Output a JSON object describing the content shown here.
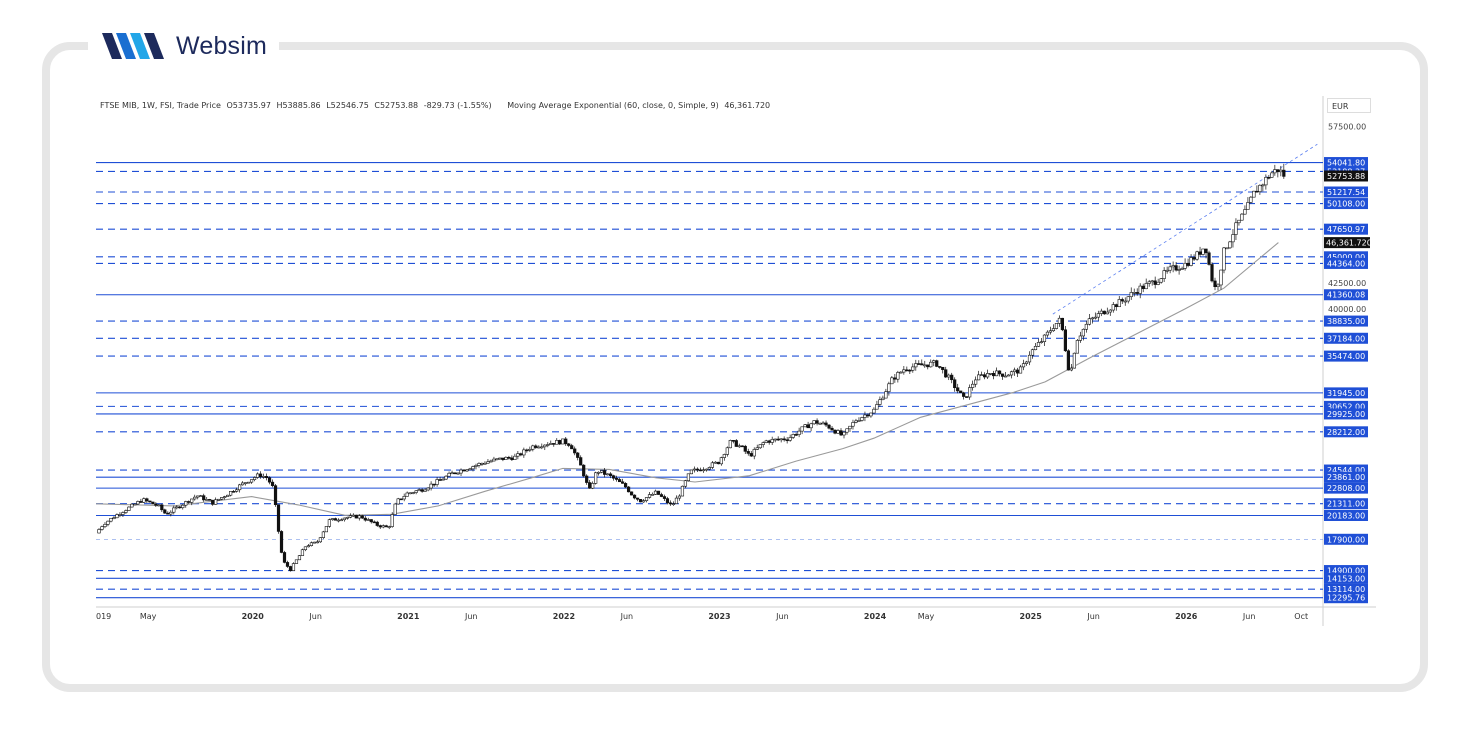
{
  "brand": {
    "name": "Websim",
    "logo_colors": [
      "#1a6fd1",
      "#22a6e8",
      "#1d2a5c"
    ]
  },
  "legend": {
    "symbol": "FTSE MIB, 1W, FSI, Trade Price",
    "open": "O53735.97",
    "high": "H53885.86",
    "low": "L52546.75",
    "close": "C52753.88",
    "change": "-829.73 (-1.55%)",
    "indicator": "Moving Average Exponential (60, close, 0, Simple, 9)",
    "indicator_value": "46,361.720"
  },
  "currency": "EUR",
  "chart_data": {
    "type": "candlestick",
    "y_range": [
      11500,
      58700
    ],
    "x_range": [
      2019.0,
      2026.88
    ],
    "x_ticks": [
      {
        "label": "019",
        "t": 2019.0
      },
      {
        "label": "May",
        "t": 2019.33
      },
      {
        "label": "2020",
        "t": 2020.0
      },
      {
        "label": "Jun",
        "t": 2020.42
      },
      {
        "label": "2021",
        "t": 2021.0
      },
      {
        "label": "Jun",
        "t": 2021.42
      },
      {
        "label": "2022",
        "t": 2022.0
      },
      {
        "label": "Jun",
        "t": 2022.42
      },
      {
        "label": "2023",
        "t": 2023.0
      },
      {
        "label": "Jun",
        "t": 2023.42
      },
      {
        "label": "2024",
        "t": 2024.0
      },
      {
        "label": "May",
        "t": 2024.33
      },
      {
        "label": "2025",
        "t": 2025.0
      },
      {
        "label": "Jun",
        "t": 2025.42
      },
      {
        "label": "2026",
        "t": 2026.0
      },
      {
        "label": "Jun",
        "t": 2026.42
      },
      {
        "label": "Oct",
        "t": 2026.75
      }
    ],
    "y_ticks": [
      {
        "label": "57500.00",
        "v": 57500
      },
      {
        "label": "42500.00",
        "v": 42500
      },
      {
        "label": "40000.00",
        "v": 40000
      }
    ],
    "level_lines": [
      {
        "label": "54041.80",
        "v": 54041.8,
        "style": "solid"
      },
      {
        "label": "53188.37",
        "v": 53188.37,
        "style": "dashed"
      },
      {
        "label": "51217.54",
        "v": 51217.54,
        "style": "dashed"
      },
      {
        "label": "50108.00",
        "v": 50108.0,
        "style": "dashed"
      },
      {
        "label": "47650.97",
        "v": 47650.97,
        "style": "dashed"
      },
      {
        "label": "45000.00",
        "v": 45000.0,
        "style": "dashed"
      },
      {
        "label": "44364.00",
        "v": 44364.0,
        "style": "dashed"
      },
      {
        "label": "41360.08",
        "v": 41360.08,
        "style": "solid"
      },
      {
        "label": "38835.00",
        "v": 38835.0,
        "style": "dashed"
      },
      {
        "label": "37184.00",
        "v": 37184.0,
        "style": "dashed"
      },
      {
        "label": "35474.00",
        "v": 35474.0,
        "style": "dashed"
      },
      {
        "label": "31945.00",
        "v": 31945.0,
        "style": "solid"
      },
      {
        "label": "30652.00",
        "v": 30652.0,
        "style": "dashed"
      },
      {
        "label": "29925.00",
        "v": 29925.0,
        "style": "solid"
      },
      {
        "label": "28212.00",
        "v": 28212.0,
        "style": "dashed"
      },
      {
        "label": "24544.00",
        "v": 24544.0,
        "style": "dashed"
      },
      {
        "label": "23861.00",
        "v": 23861.0,
        "style": "solid"
      },
      {
        "label": "22808.00",
        "v": 22808.0,
        "style": "solid"
      },
      {
        "label": "21311.00",
        "v": 21311.0,
        "style": "dashed"
      },
      {
        "label": "20183.00",
        "v": 20183.0,
        "style": "solid"
      },
      {
        "label": "17900.00",
        "v": 17900.0,
        "style": "thin-dashed"
      },
      {
        "label": "14900.00",
        "v": 14900.0,
        "style": "dashed"
      },
      {
        "label": "14153.00",
        "v": 14153.0,
        "style": "solid"
      },
      {
        "label": "13114.00",
        "v": 13114.0,
        "style": "dashed"
      },
      {
        "label": "12295.76",
        "v": 12295.76,
        "style": "solid"
      }
    ],
    "last_price": {
      "label": "52753.88",
      "v": 52753.88
    },
    "ema_label": {
      "label": "46,361.720",
      "v": 46361.72
    },
    "price_path": [
      [
        2019.0,
        18500
      ],
      [
        2019.05,
        19400
      ],
      [
        2019.15,
        20400
      ],
      [
        2019.3,
        21700
      ],
      [
        2019.4,
        21100
      ],
      [
        2019.45,
        20300
      ],
      [
        2019.55,
        21200
      ],
      [
        2019.65,
        22100
      ],
      [
        2019.75,
        21400
      ],
      [
        2019.85,
        22300
      ],
      [
        2019.95,
        23300
      ],
      [
        2020.05,
        24100
      ],
      [
        2020.1,
        23800
      ],
      [
        2020.14,
        22800
      ],
      [
        2020.17,
        19000
      ],
      [
        2020.2,
        15800
      ],
      [
        2020.25,
        15000
      ],
      [
        2020.35,
        17300
      ],
      [
        2020.42,
        17600
      ],
      [
        2020.5,
        19700
      ],
      [
        2020.6,
        20000
      ],
      [
        2020.7,
        20100
      ],
      [
        2020.8,
        19300
      ],
      [
        2020.88,
        19000
      ],
      [
        2020.93,
        21500
      ],
      [
        2021.0,
        22300
      ],
      [
        2021.1,
        22700
      ],
      [
        2021.2,
        23500
      ],
      [
        2021.3,
        24300
      ],
      [
        2021.42,
        24900
      ],
      [
        2021.5,
        25300
      ],
      [
        2021.6,
        25600
      ],
      [
        2021.7,
        25800
      ],
      [
        2021.8,
        26800
      ],
      [
        2021.9,
        27100
      ],
      [
        2022.0,
        27300
      ],
      [
        2022.05,
        27000
      ],
      [
        2022.12,
        24800
      ],
      [
        2022.17,
        22500
      ],
      [
        2022.22,
        24500
      ],
      [
        2022.3,
        24000
      ],
      [
        2022.4,
        23000
      ],
      [
        2022.45,
        22100
      ],
      [
        2022.5,
        21600
      ],
      [
        2022.6,
        22400
      ],
      [
        2022.7,
        21100
      ],
      [
        2022.75,
        22200
      ],
      [
        2022.82,
        24400
      ],
      [
        2022.9,
        24700
      ],
      [
        2023.0,
        25300
      ],
      [
        2023.08,
        27300
      ],
      [
        2023.15,
        26700
      ],
      [
        2023.2,
        25900
      ],
      [
        2023.3,
        27300
      ],
      [
        2023.45,
        27600
      ],
      [
        2023.55,
        28600
      ],
      [
        2023.62,
        29200
      ],
      [
        2023.7,
        28800
      ],
      [
        2023.8,
        27800
      ],
      [
        2023.88,
        29300
      ],
      [
        2024.0,
        30300
      ],
      [
        2024.05,
        31500
      ],
      [
        2024.12,
        33300
      ],
      [
        2024.2,
        34300
      ],
      [
        2024.3,
        34600
      ],
      [
        2024.4,
        34800
      ],
      [
        2024.48,
        33400
      ],
      [
        2024.58,
        31300
      ],
      [
        2024.65,
        33300
      ],
      [
        2024.75,
        33900
      ],
      [
        2024.85,
        33700
      ],
      [
        2024.95,
        34200
      ],
      [
        2025.0,
        35700
      ],
      [
        2025.1,
        37300
      ],
      [
        2025.15,
        38300
      ],
      [
        2025.2,
        39000
      ],
      [
        2025.26,
        33500
      ],
      [
        2025.3,
        37000
      ],
      [
        2025.38,
        38800
      ],
      [
        2025.5,
        40000
      ],
      [
        2025.6,
        40800
      ],
      [
        2025.7,
        41900
      ],
      [
        2025.8,
        42600
      ],
      [
        2025.9,
        43700
      ],
      [
        2026.0,
        44300
      ],
      [
        2026.08,
        45200
      ],
      [
        2026.13,
        46100
      ],
      [
        2026.17,
        43000
      ],
      [
        2026.2,
        41700
      ],
      [
        2026.25,
        45500
      ],
      [
        2026.32,
        47700
      ],
      [
        2026.4,
        49700
      ],
      [
        2026.45,
        51300
      ],
      [
        2026.5,
        52100
      ],
      [
        2026.55,
        53000
      ],
      [
        2026.6,
        53400
      ],
      [
        2026.64,
        52750
      ]
    ],
    "ema_path": [
      [
        2019.0,
        21300
      ],
      [
        2019.5,
        21100
      ],
      [
        2020.0,
        22000
      ],
      [
        2020.3,
        21200
      ],
      [
        2020.6,
        20200
      ],
      [
        2020.9,
        20300
      ],
      [
        2021.2,
        21100
      ],
      [
        2021.5,
        22500
      ],
      [
        2021.8,
        23800
      ],
      [
        2022.0,
        24700
      ],
      [
        2022.3,
        24600
      ],
      [
        2022.6,
        23800
      ],
      [
        2022.85,
        23400
      ],
      [
        2023.2,
        24000
      ],
      [
        2023.5,
        25400
      ],
      [
        2023.8,
        26600
      ],
      [
        2024.0,
        27600
      ],
      [
        2024.3,
        29600
      ],
      [
        2024.6,
        30800
      ],
      [
        2024.9,
        32000
      ],
      [
        2025.1,
        33000
      ],
      [
        2025.4,
        35400
      ],
      [
        2025.7,
        37700
      ],
      [
        2026.0,
        40000
      ],
      [
        2026.25,
        42000
      ],
      [
        2026.45,
        44500
      ],
      [
        2026.6,
        46360
      ]
    ],
    "channel_upper": [
      [
        2025.15,
        39500
      ],
      [
        2026.85,
        55800
      ]
    ]
  }
}
